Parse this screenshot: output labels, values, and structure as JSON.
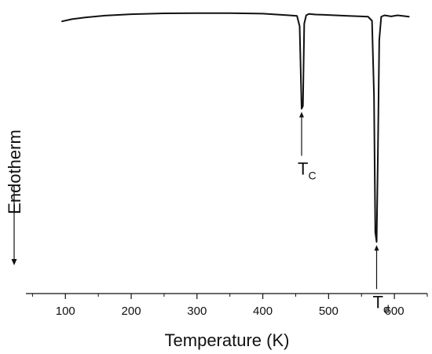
{
  "chart_data": {
    "type": "line",
    "title": "",
    "xlabel": "Temperature (K)",
    "ylabel": "Endotherm",
    "xlim": [
      40,
      650
    ],
    "ylim": [
      0,
      1
    ],
    "grid": false,
    "x_ticks": [
      100,
      200,
      300,
      400,
      500,
      600
    ],
    "x_tick_labels": [
      "100",
      "200",
      "300",
      "400",
      "500",
      "600"
    ],
    "series": [
      {
        "x": [
          95,
          110,
          130,
          160,
          200,
          250,
          300,
          350,
          400,
          440,
          452,
          456,
          459,
          461,
          463,
          466,
          470,
          480,
          490,
          500,
          510,
          530,
          550,
          560,
          566,
          569,
          571,
          573,
          575,
          577,
          580,
          585,
          595,
          605,
          615,
          622
        ],
        "y": [
          0.968,
          0.976,
          0.982,
          0.989,
          0.994,
          0.997,
          0.998,
          0.998,
          0.996,
          0.99,
          0.988,
          0.95,
          0.65,
          0.66,
          0.96,
          0.99,
          0.995,
          0.993,
          0.992,
          0.991,
          0.99,
          0.988,
          0.986,
          0.985,
          0.97,
          0.7,
          0.2,
          0.165,
          0.5,
          0.9,
          0.985,
          0.99,
          0.986,
          0.99,
          0.987,
          0.985
        ]
      }
    ],
    "annotations": [
      {
        "text": "T",
        "subscript": "C",
        "x": 459,
        "y": 0.65,
        "style": "arrow-up"
      },
      {
        "text": "T",
        "subscript": "d",
        "x": 573,
        "y": 0.165,
        "style": "arrow-up"
      }
    ]
  }
}
